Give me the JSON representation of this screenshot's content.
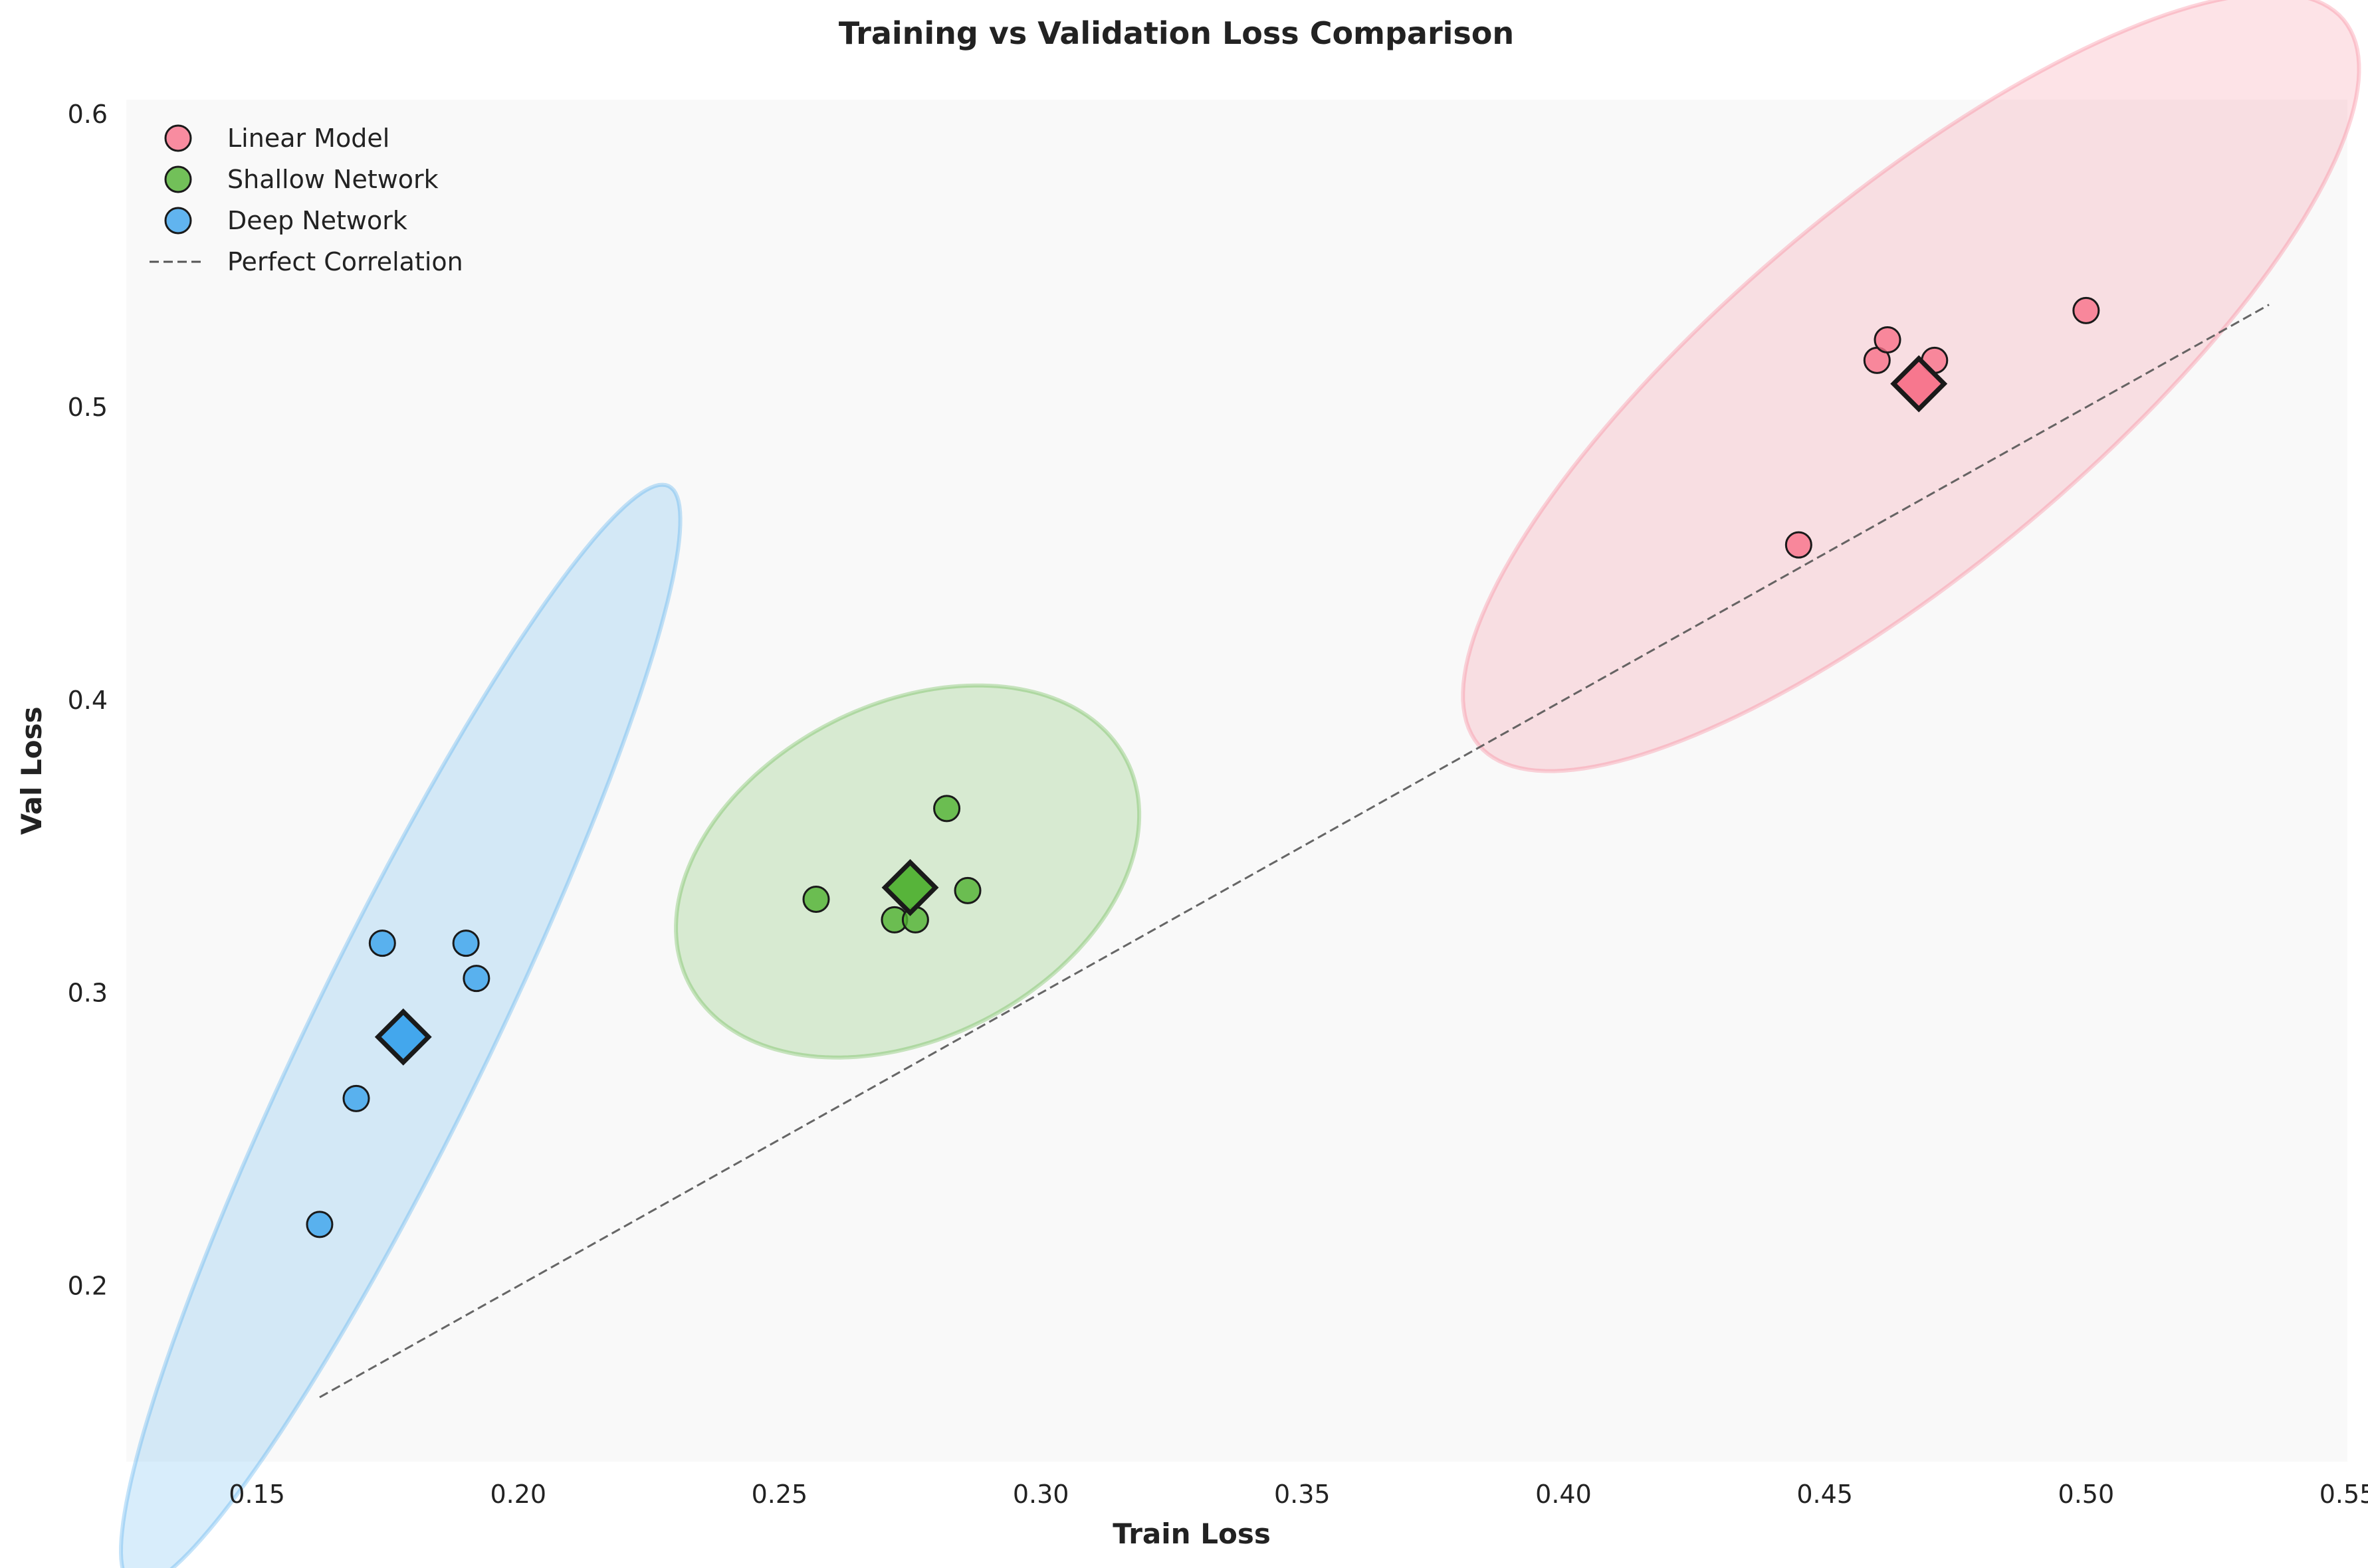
{
  "chart_data": {
    "type": "scatter",
    "title": "Training vs Validation Loss Comparison",
    "xlabel": "Train Loss",
    "ylabel": "Val Loss",
    "xlim": [
      0.125,
      0.55
    ],
    "ylim": [
      0.14,
      0.605
    ],
    "xticks": [
      0.15,
      0.2,
      0.25,
      0.3,
      0.35,
      0.4,
      0.45,
      0.5,
      0.55
    ],
    "yticks": [
      0.2,
      0.3,
      0.4,
      0.5,
      0.6
    ],
    "xtick_labels": [
      "0.15",
      "0.20",
      "0.25",
      "0.30",
      "0.35",
      "0.40",
      "0.45",
      "0.50",
      "0.55"
    ],
    "ytick_labels": [
      "0.2",
      "0.3",
      "0.4",
      "0.5",
      "0.6"
    ],
    "grid": false,
    "legend_position": "top-left",
    "background_color": "#f9f9f9",
    "series": [
      {
        "name": "Linear Model",
        "color": "#f77189",
        "points": [
          [
            0.445,
            0.453
          ],
          [
            0.46,
            0.516
          ],
          [
            0.462,
            0.523
          ],
          [
            0.471,
            0.516
          ],
          [
            0.5,
            0.533
          ]
        ],
        "mean": [
          0.468,
          0.508
        ],
        "ellipse": {
          "center": [
            0.4665,
            0.5085
          ],
          "angle_deg": 40,
          "semi_major": 0.108,
          "semi_minor": 0.035
        }
      },
      {
        "name": "Shallow Network",
        "color": "#50b131",
        "points": [
          [
            0.257,
            0.332
          ],
          [
            0.272,
            0.325
          ],
          [
            0.276,
            0.325
          ],
          [
            0.282,
            0.363
          ],
          [
            0.286,
            0.335
          ]
        ],
        "mean": [
          0.275,
          0.336
        ],
        "ellipse": {
          "center": [
            0.2745,
            0.3415
          ],
          "angle_deg": 27,
          "semi_major": 0.047,
          "semi_minor": 0.032
        }
      },
      {
        "name": "Deep Network",
        "color": "#3ba3ec",
        "points": [
          [
            0.162,
            0.221
          ],
          [
            0.169,
            0.264
          ],
          [
            0.174,
            0.317
          ],
          [
            0.19,
            0.317
          ],
          [
            0.192,
            0.305
          ]
        ],
        "mean": [
          0.178,
          0.285
        ],
        "ellipse": {
          "center": [
            0.1775,
            0.2855
          ],
          "angle_deg": 64,
          "semi_major": 0.117,
          "semi_minor": 0.017
        }
      }
    ],
    "reference_line": {
      "name": "Perfect Correlation",
      "x": [
        0.162,
        0.535
      ],
      "y": [
        0.162,
        0.535
      ],
      "color": "#555555",
      "style": "dashed"
    }
  }
}
